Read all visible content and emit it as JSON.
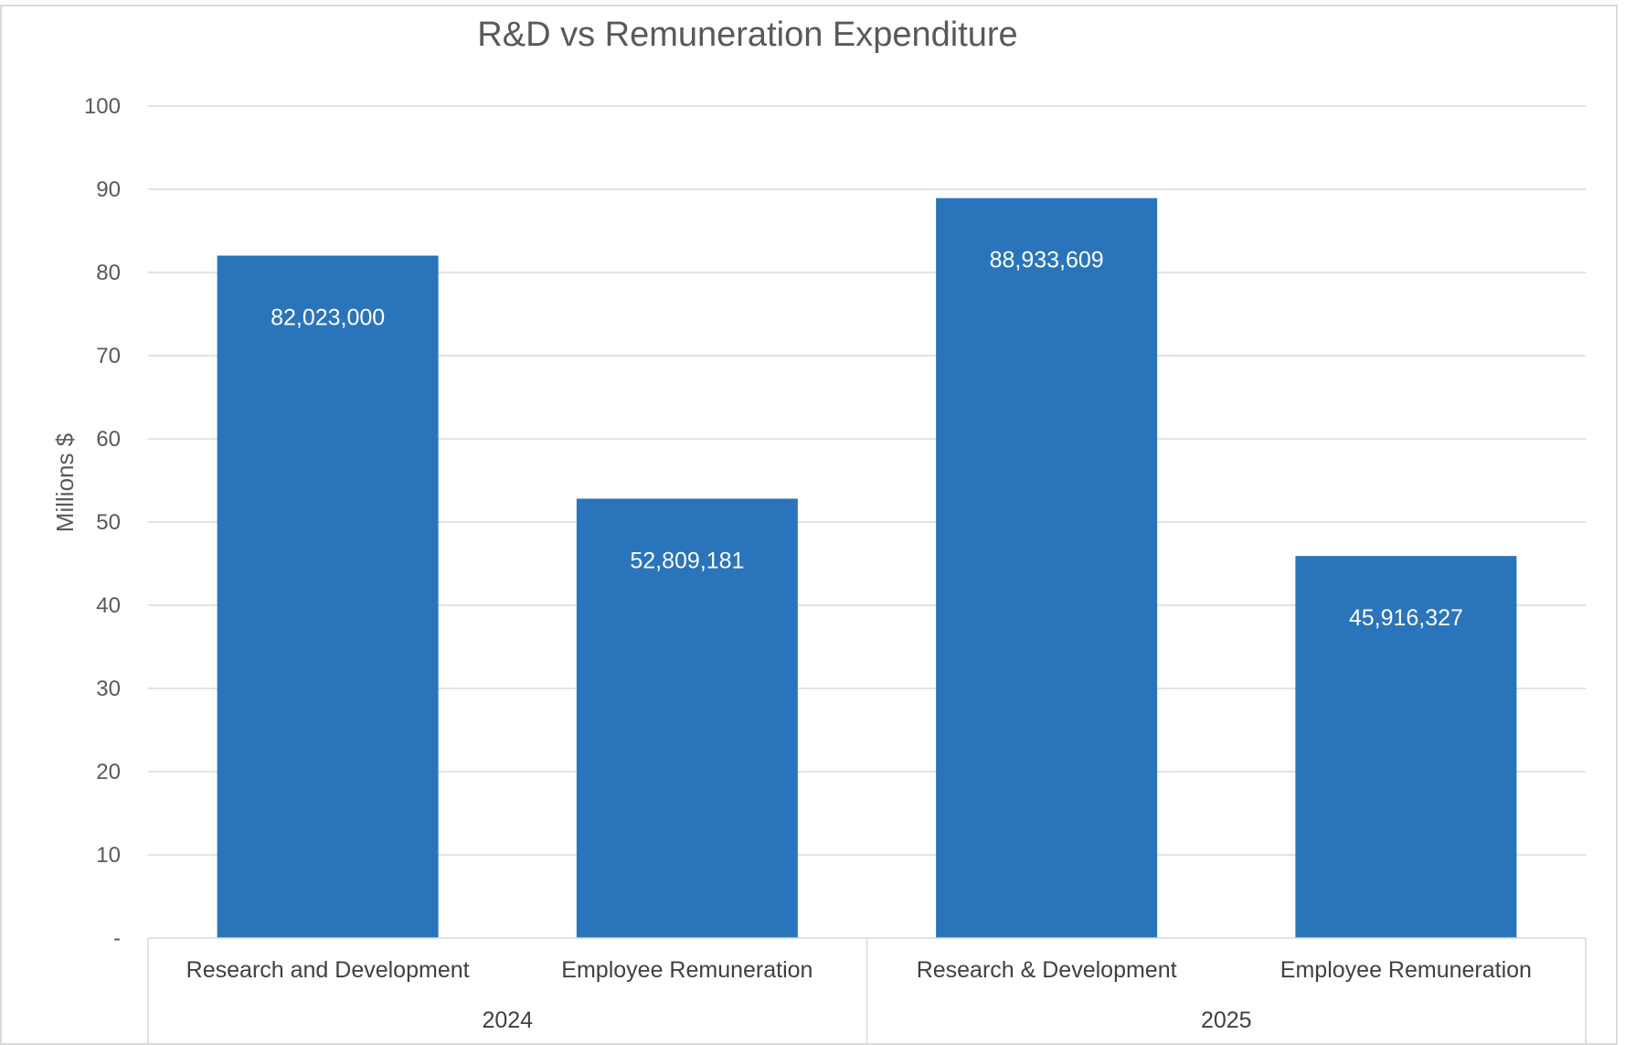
{
  "chart_data": {
    "type": "bar",
    "title": "R&D vs Remuneration Expenditure",
    "ylabel": "Millions $",
    "xlabel": "",
    "ylim": [
      0,
      100
    ],
    "y_ticks": [
      "-",
      "10",
      "20",
      "30",
      "40",
      "50",
      "60",
      "70",
      "80",
      "90",
      "100"
    ],
    "grid": true,
    "groups": [
      {
        "label": "2024",
        "categories": [
          "Research and Development",
          "Employee Remuneration"
        ],
        "values": [
          82023000,
          52809181
        ],
        "data_labels": [
          "82,023,000",
          "52,809,181"
        ]
      },
      {
        "label": "2025",
        "categories": [
          "Research & Development",
          "Employee Remuneration"
        ],
        "values": [
          88933609,
          45916327
        ],
        "data_labels": [
          "88,933,609",
          "45,916,327"
        ]
      }
    ],
    "bar_color": "#2a74bb"
  }
}
